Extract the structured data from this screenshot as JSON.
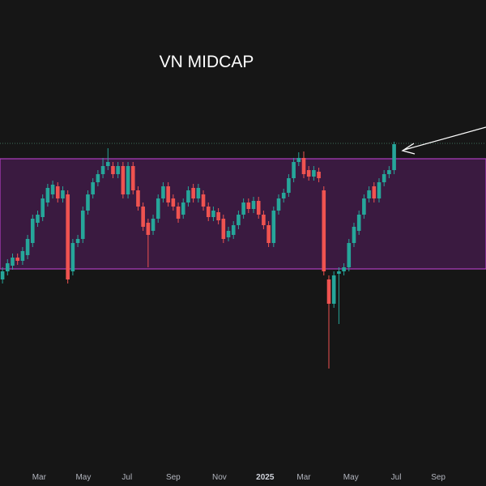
{
  "chart_data": {
    "type": "candlestick",
    "title": "VN MIDCAP",
    "up_color": "#26a69a",
    "down_color": "#ef5350",
    "open": [
      255,
      265,
      272,
      282,
      278,
      285,
      300,
      325,
      332,
      350,
      360,
      370,
      355,
      360,
      265,
      300,
      305,
      340,
      360,
      375,
      385,
      395,
      395,
      385,
      395,
      360,
      395,
      365,
      345,
      325,
      315,
      330,
      355,
      370,
      355,
      345,
      335,
      350,
      368,
      355,
      360,
      345,
      332,
      338,
      330,
      307,
      310,
      322,
      335,
      350,
      342,
      352,
      335,
      322,
      300,
      340,
      355,
      362,
      380,
      400,
      405,
      390,
      382,
      388,
      365,
      255,
      225,
      262,
      265,
      270,
      300,
      315,
      335,
      355,
      370,
      355,
      375,
      385,
      390
    ],
    "high": [
      270,
      280,
      287,
      287,
      295,
      310,
      335,
      340,
      360,
      373,
      377,
      375,
      370,
      365,
      305,
      310,
      345,
      365,
      380,
      390,
      405,
      417,
      400,
      400,
      400,
      400,
      400,
      370,
      350,
      330,
      335,
      360,
      375,
      375,
      360,
      350,
      355,
      370,
      373,
      373,
      365,
      350,
      345,
      343,
      335,
      320,
      327,
      340,
      355,
      355,
      357,
      357,
      340,
      327,
      345,
      360,
      367,
      385,
      405,
      412,
      413,
      395,
      395,
      393,
      370,
      260,
      265,
      270,
      275,
      305,
      325,
      340,
      360,
      370,
      375,
      380,
      390,
      395,
      425
    ],
    "low": [
      250,
      260,
      267,
      273,
      273,
      280,
      295,
      320,
      327,
      345,
      355,
      350,
      350,
      250,
      260,
      295,
      300,
      335,
      355,
      370,
      380,
      390,
      380,
      380,
      355,
      355,
      360,
      340,
      315,
      270,
      310,
      325,
      350,
      345,
      340,
      325,
      330,
      345,
      350,
      350,
      340,
      327,
      327,
      323,
      300,
      302,
      305,
      317,
      330,
      337,
      337,
      330,
      317,
      295,
      295,
      335,
      350,
      357,
      375,
      395,
      380,
      377,
      377,
      375,
      260,
      145,
      220,
      200,
      260,
      265,
      295,
      310,
      330,
      350,
      350,
      350,
      370,
      380,
      385
    ],
    "close": [
      265,
      275,
      282,
      278,
      290,
      305,
      330,
      335,
      355,
      368,
      372,
      355,
      365,
      255,
      300,
      305,
      340,
      360,
      375,
      385,
      395,
      400,
      385,
      395,
      360,
      395,
      365,
      345,
      320,
      310,
      330,
      355,
      370,
      350,
      345,
      330,
      350,
      365,
      355,
      368,
      345,
      332,
      340,
      328,
      305,
      315,
      322,
      335,
      350,
      342,
      352,
      335,
      322,
      300,
      340,
      355,
      362,
      380,
      400,
      405,
      385,
      382,
      390,
      380,
      265,
      225,
      260,
      265,
      270,
      300,
      320,
      335,
      355,
      365,
      355,
      375,
      385,
      390,
      422
    ],
    "range_band": {
      "low": 268,
      "high": 404
    },
    "reference_line": 423,
    "xlim": [
      -0.5,
      96.3
    ],
    "ylim": [
      0,
      600
    ],
    "xticks": [
      {
        "value": 7.3,
        "label": "Mar"
      },
      {
        "value": 16.1,
        "label": "May"
      },
      {
        "value": 24.8,
        "label": "Jul"
      },
      {
        "value": 34,
        "label": "Sep"
      },
      {
        "value": 43.2,
        "label": "Nov"
      },
      {
        "value": 52.3,
        "label": "2025"
      },
      {
        "value": 60,
        "label": "Mar"
      },
      {
        "value": 69.4,
        "label": "May"
      },
      {
        "value": 78.4,
        "label": "Jul"
      },
      {
        "value": 86.8,
        "label": "Sep"
      }
    ]
  }
}
